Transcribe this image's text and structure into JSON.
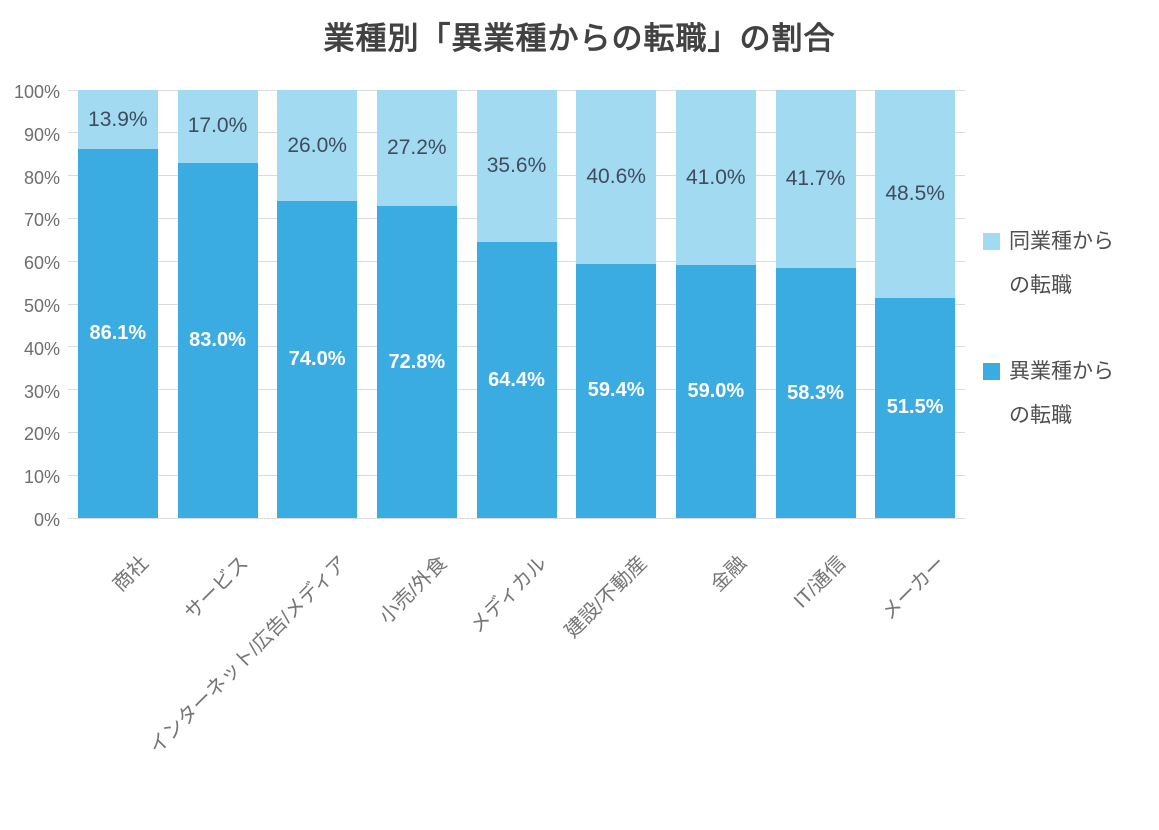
{
  "title": "業種別「異業種からの転職」の割合",
  "legend_items": [
    {
      "lines": [
        "同業種から",
        "の転職"
      ],
      "full_label": "同業種からの転職",
      "color": "#a2daf2"
    },
    {
      "lines": [
        "異業種から",
        "の転職"
      ],
      "full_label": "異業種からの転職",
      "color": "#3bace2"
    }
  ],
  "chart_data": {
    "type": "bar",
    "stacked": true,
    "unit": "%",
    "title": "業種別「異業種からの転職」の割合",
    "categories": [
      "商社",
      "サービス",
      "インターネット/広告/メディア",
      "小売/外食",
      "メディカル",
      "建設/不動産",
      "金融",
      "IT/通信",
      "メーカー"
    ],
    "series": [
      {
        "name": "異業種からの転職",
        "color": "#3bace2",
        "label_color": "#ffffff",
        "values": [
          86.1,
          83.0,
          74.0,
          72.8,
          64.4,
          59.4,
          59.0,
          58.3,
          51.5
        ]
      },
      {
        "name": "同業種からの転職",
        "color": "#a2daf2",
        "label_color": "#3e4c5e",
        "values": [
          13.9,
          17.0,
          26.0,
          27.2,
          35.6,
          40.6,
          41.0,
          41.7,
          48.5
        ]
      }
    ],
    "stack_order_bottom_to_top": [
      "異業種からの転職",
      "同業種からの転職"
    ],
    "y_ticks": [
      "100%",
      "90%",
      "80%",
      "70%",
      "60%",
      "50%",
      "40%",
      "30%",
      "20%",
      "10%",
      "0%"
    ],
    "ylim": [
      0,
      100
    ],
    "grid": true,
    "legend_position": "right",
    "xlabel": "",
    "ylabel": ""
  }
}
